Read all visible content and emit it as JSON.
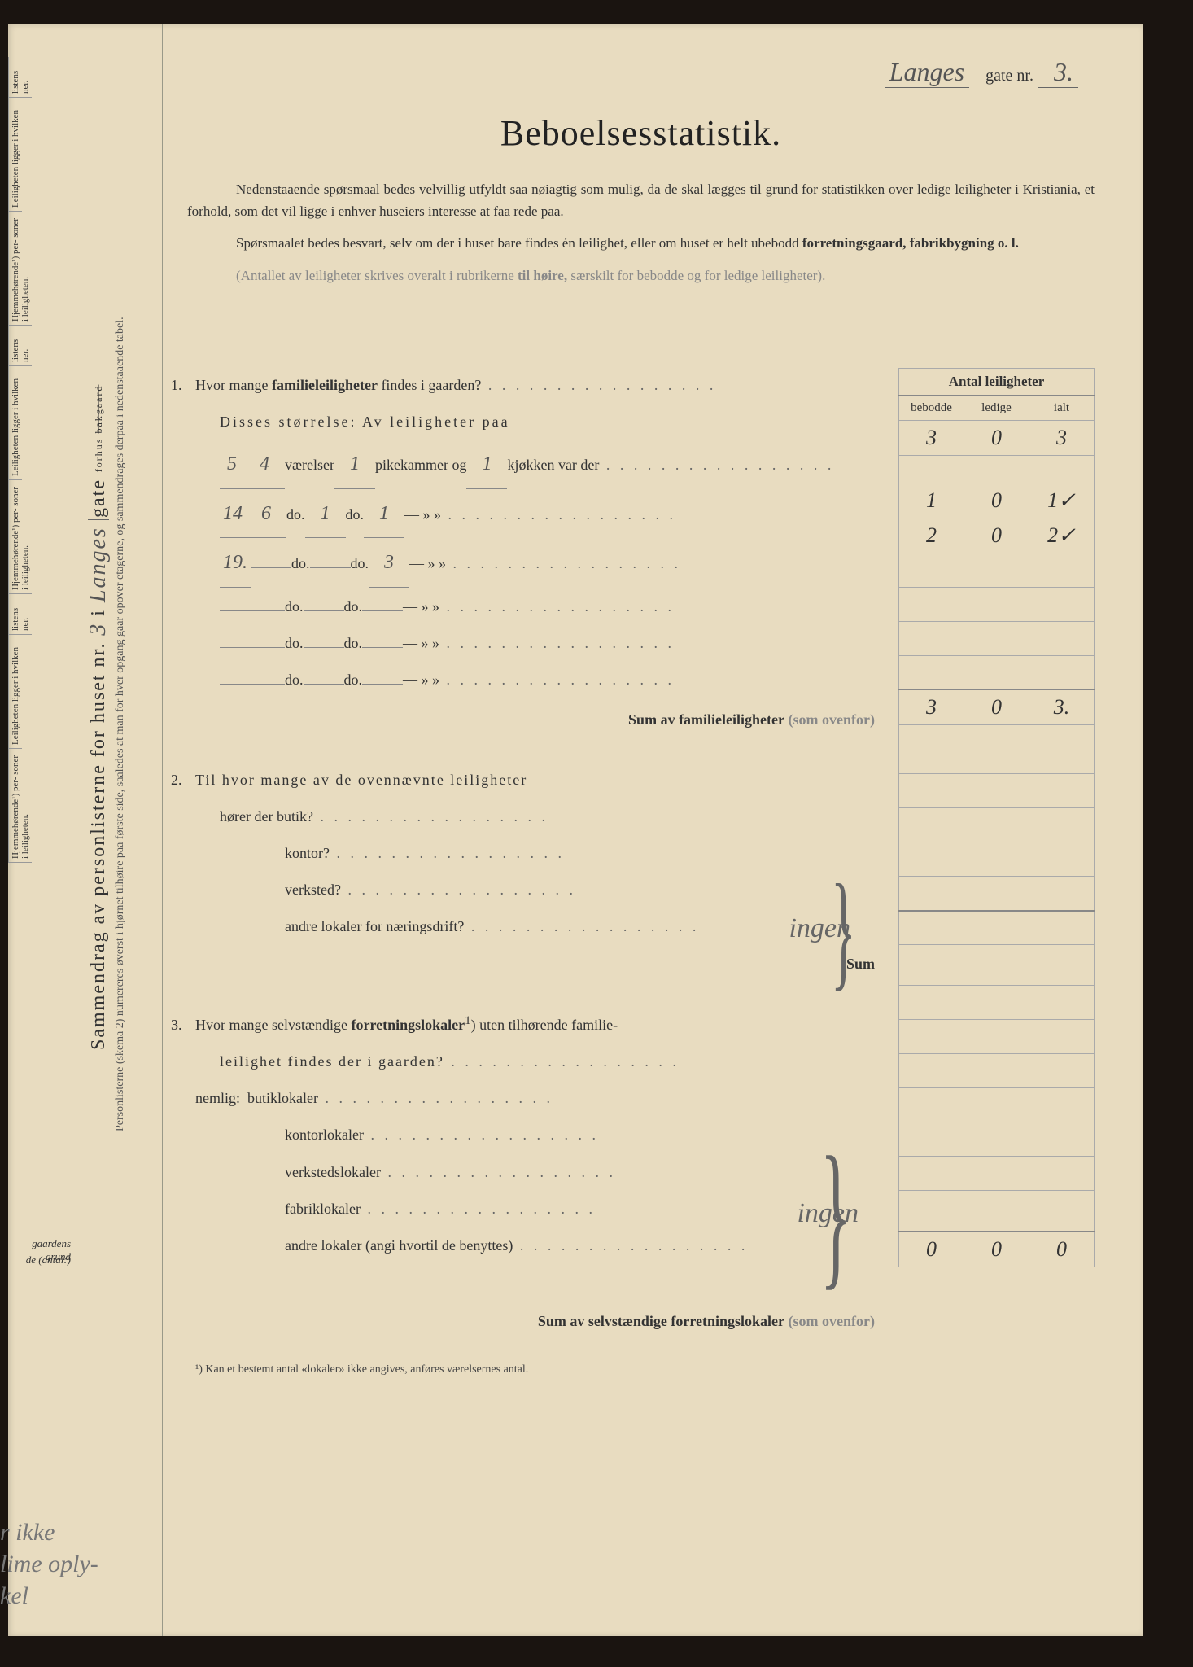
{
  "header": {
    "street_hw": "Langes",
    "gate_label": "gate nr.",
    "gate_num_hw": "3."
  },
  "title": "Beboelsesstatistik.",
  "intro": {
    "p1": "Nedenstaaende spørsmaal bedes velvillig utfyldt saa nøiagtig som mulig, da de skal lægges til grund for statistikken over ledige leiligheter i Kristiania, et forhold, som det vil ligge i enhver huseiers interesse at faa rede paa.",
    "p2_a": "Spørsmaalet bedes besvart, selv om der i huset bare findes én leilighet, eller om huset er helt ubebodd ",
    "p2_b": "forretningsgaard, fabrikbygning o. l.",
    "p3_a": "(Antallet av leiligheter skrives overalt i rubrikerne ",
    "p3_b": "til høire,",
    "p3_c": " særskilt for bebodde og for ledige leiligheter)."
  },
  "table_head": {
    "main": "Antal leiligheter",
    "c1": "bebodde",
    "c2": "ledige",
    "c3": "ialt"
  },
  "q1": {
    "text": "Hvor mange ",
    "bold": "familieleiligheter",
    "text2": " findes i gaarden?",
    "size_label": "Disses størrelse:   Av leiligheter paa",
    "rows": [
      {
        "pre_hw": "5",
        "n1_hw": "4",
        "l1": "værelser",
        "n2_hw": "1",
        "l2": "pikekammer og",
        "n3_hw": "1",
        "l3": "kjøkken var der",
        "b": "1",
        "l": "0",
        "i": "1✓"
      },
      {
        "pre_hw": "14",
        "n1_hw": "6",
        "l1": "do.",
        "n2_hw": "1",
        "l2": "do.",
        "n3_hw": "1",
        "l3": "—   »      »",
        "b": "2",
        "l": "0",
        "i": "2✓"
      },
      {
        "pre_hw": "19.",
        "n1_hw": "",
        "l1": "do.",
        "n2_hw": "",
        "l2": "do.",
        "n3_hw": "3",
        "l3": "—   »      »",
        "b": "",
        "l": "",
        "i": ""
      },
      {
        "pre_hw": "",
        "n1_hw": "",
        "l1": "do.",
        "n2_hw": "",
        "l2": "do.",
        "n3_hw": "",
        "l3": "—   »      »",
        "b": "",
        "l": "",
        "i": ""
      },
      {
        "pre_hw": "",
        "n1_hw": "",
        "l1": "do.",
        "n2_hw": "",
        "l2": "do.",
        "n3_hw": "",
        "l3": "—   »      »",
        "b": "",
        "l": "",
        "i": ""
      },
      {
        "pre_hw": "",
        "n1_hw": "",
        "l1": "do.",
        "n2_hw": "",
        "l2": "do.",
        "n3_hw": "",
        "l3": "—   »      »",
        "b": "",
        "l": "",
        "i": ""
      }
    ],
    "sum_label": "Sum av familieleiligheter",
    "sum_note": "(som ovenfor)",
    "sum_b": "3",
    "sum_l": "0",
    "sum_i": "3.",
    "totals_b": "3",
    "totals_l": "0",
    "totals_i": "3"
  },
  "q2": {
    "intro": "Til hvor mange av de ovennævnte leiligheter",
    "lines": [
      "hører der butik?",
      "kontor?",
      "verksted?",
      "andre lokaler for næringsdrift?"
    ],
    "hw_note": "ingen",
    "sum": "Sum"
  },
  "q3": {
    "text_a": "Hvor mange selvstændige ",
    "bold": "forretningslokaler",
    "sup": "1",
    "text_b": ") uten tilhørende familie-",
    "text_c": "leilighet findes der i gaarden?",
    "nemlig": "nemlig:",
    "lines": [
      "butiklokaler",
      "kontorlokaler",
      "verkstedslokaler",
      "fabriklokaler",
      "andre lokaler (angi hvortil de benyttes)"
    ],
    "hw_note": "ingen",
    "sum_label": "Sum av selvstændige forretningslokaler",
    "sum_note": "(som ovenfor)",
    "sum_b": "0",
    "sum_l": "0",
    "sum_i": "0"
  },
  "footnote": "¹) Kan et bestemt antal «lokaler» ikke angives, anføres værelsernes antal.",
  "margin": {
    "title": "Sammendrag av personlisterne for huset nr.",
    "nr_hw": "3",
    "i": "i",
    "street_hw": "Langes",
    "gate": "gate",
    "forhus": "forhus",
    "bakgaard": "bakgaard",
    "fine": "Personlisterne (skema 2) numereres øverst i hjørnet tilhøire paa første side, saaledes at man for hver opgang gaar opover etagerne, og sammendrages derpaa i nedenstaaende tabel.",
    "cells": [
      "listens ner.",
      "Leiligheten ligger i hvilken",
      "Hjemmehørende¹) per- soner i leiligheten."
    ],
    "bottom1": "gaardens grund",
    "bottom2": "de (antal:)"
  },
  "bottom_hw": "r ikke\nlime oply-\nkel"
}
